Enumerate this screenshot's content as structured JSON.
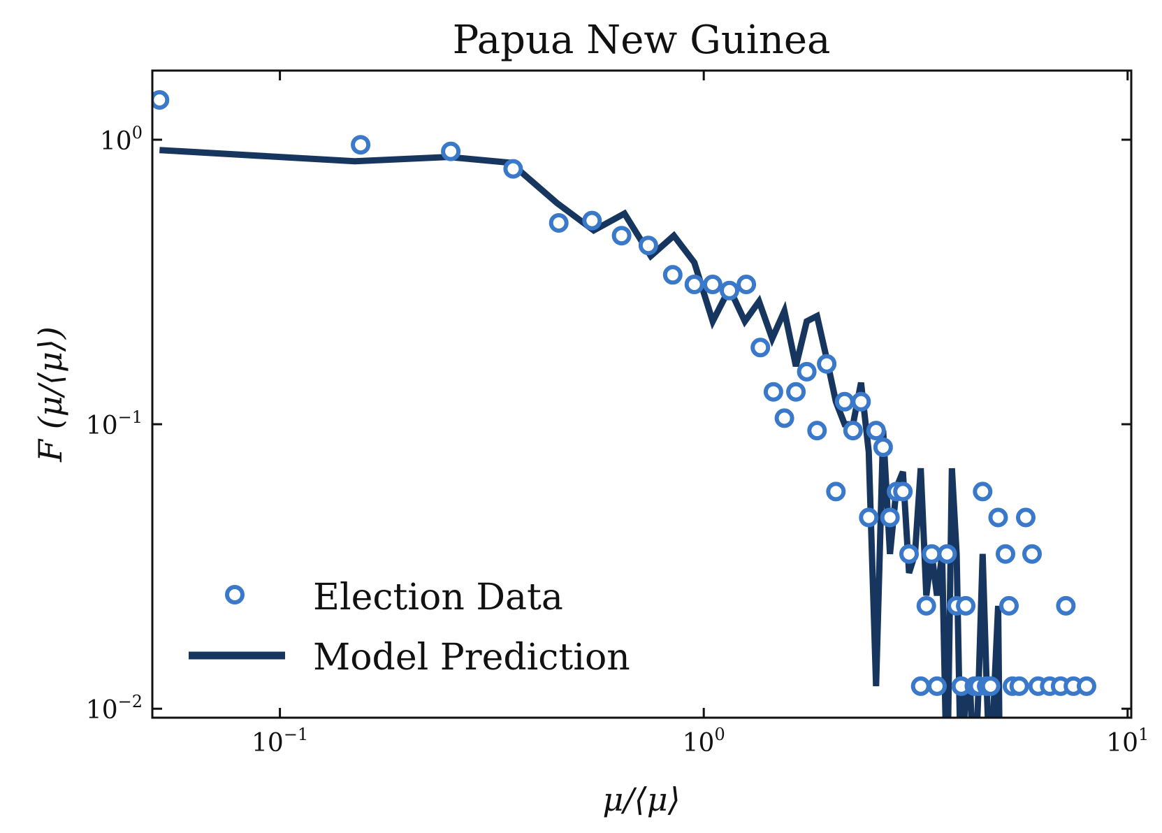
{
  "chart_data": {
    "type": "scatter",
    "title": "Papua New Guinea",
    "xlabel": "μ/⟨μ⟩",
    "ylabel": "F (μ/⟨μ⟩)",
    "xscale": "log",
    "yscale": "log",
    "xlim": [
      0.05,
      10.2
    ],
    "ylim": [
      0.0093,
      1.75
    ],
    "x_ticks": [
      {
        "base": "10",
        "exp": "−1",
        "value": 0.1
      },
      {
        "base": "10",
        "exp": "0",
        "value": 1
      },
      {
        "base": "10",
        "exp": "1",
        "value": 10
      }
    ],
    "y_ticks": [
      {
        "base": "10",
        "exp": "−2",
        "value": 0.01
      },
      {
        "base": "10",
        "exp": "−1",
        "value": 0.1
      },
      {
        "base": "10",
        "exp": "0",
        "value": 1
      }
    ],
    "grid": false,
    "legend": "lower-left",
    "series": [
      {
        "name": "Election Data",
        "kind": "markers",
        "color": "#3a78c9",
        "x": [
          0.052,
          0.155,
          0.253,
          0.355,
          0.455,
          0.545,
          0.64,
          0.74,
          0.845,
          0.95,
          1.05,
          1.15,
          1.26,
          1.36,
          1.46,
          1.55,
          1.65,
          1.75,
          1.85,
          1.95,
          2.05,
          2.15,
          2.25,
          2.35,
          2.45,
          2.55,
          2.65,
          2.75,
          2.85,
          2.95,
          3.05,
          3.25,
          3.35,
          3.45,
          3.55,
          3.75,
          3.95,
          4.05,
          4.15,
          4.35,
          4.45,
          4.55,
          4.65,
          4.75,
          4.95,
          5.15,
          5.25,
          5.35,
          5.55,
          5.75,
          5.95,
          6.15,
          6.55,
          6.95,
          7.15,
          7.45,
          8.0
        ],
        "y": [
          1.38,
          0.96,
          0.91,
          0.79,
          0.51,
          0.52,
          0.46,
          0.425,
          0.335,
          0.31,
          0.31,
          0.295,
          0.31,
          0.186,
          0.13,
          0.105,
          0.13,
          0.153,
          0.095,
          0.163,
          0.058,
          0.12,
          0.095,
          0.12,
          0.047,
          0.095,
          0.083,
          0.047,
          0.058,
          0.058,
          0.035,
          0.012,
          0.023,
          0.035,
          0.012,
          0.035,
          0.023,
          0.012,
          0.023,
          0.012,
          0.012,
          0.058,
          0.012,
          0.012,
          0.047,
          0.035,
          0.023,
          0.012,
          0.012,
          0.047,
          0.035,
          0.012,
          0.012,
          0.012,
          0.023,
          0.012,
          0.012
        ]
      },
      {
        "name": "Model Prediction",
        "kind": "line",
        "color": "#16365f",
        "x": [
          0.052,
          0.15,
          0.25,
          0.35,
          0.45,
          0.55,
          0.65,
          0.75,
          0.85,
          0.95,
          1.05,
          1.15,
          1.25,
          1.35,
          1.45,
          1.55,
          1.65,
          1.75,
          1.85,
          1.95,
          2.05,
          2.15,
          2.25,
          2.35,
          2.45,
          2.55,
          2.65,
          2.75,
          2.85,
          2.95,
          3.05,
          3.15,
          3.25,
          3.35,
          3.45,
          3.55,
          3.65,
          3.75,
          3.85,
          3.95,
          4.05,
          4.15,
          4.25,
          4.35,
          4.45,
          4.55,
          4.65,
          4.75,
          4.85,
          4.95,
          5.0
        ],
        "y": [
          0.92,
          0.84,
          0.87,
          0.83,
          0.6,
          0.48,
          0.55,
          0.39,
          0.46,
          0.37,
          0.23,
          0.3,
          0.23,
          0.27,
          0.2,
          0.25,
          0.16,
          0.23,
          0.24,
          0.17,
          0.12,
          0.1,
          0.1,
          0.14,
          0.08,
          0.012,
          0.095,
          0.035,
          0.06,
          0.068,
          0.03,
          0.035,
          0.07,
          0.025,
          0.035,
          0.025,
          0.035,
          0.005,
          0.07,
          0.035,
          0.005,
          0.012,
          0.012,
          0.005,
          0.012,
          0.035,
          0.012,
          0.005,
          0.012,
          0.023,
          0.005
        ]
      }
    ]
  }
}
